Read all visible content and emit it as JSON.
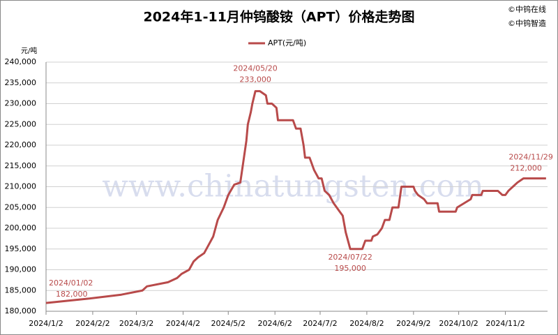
{
  "chart_data": {
    "type": "line",
    "title": "2024年1-11月仲钨酸铵（APT）价格走势图",
    "y_axis_label": "元/吨",
    "watermark": "www.chinatungsten.com",
    "credits": [
      "©中钨在线",
      "©中钨智造"
    ],
    "x": [
      "2024/1/2",
      "2024/1/29",
      "2024/2/21",
      "2024/3/6",
      "2024/3/9",
      "2024/3/23",
      "2024/3/29",
      "2024/4/1",
      "2024/4/6",
      "2024/4/9",
      "2024/4/12",
      "2024/4/16",
      "2024/4/19",
      "2024/4/22",
      "2024/4/25",
      "2024/4/29",
      "2024/5/2",
      "2024/5/6",
      "2024/5/10",
      "2024/5/12",
      "2024/5/14",
      "2024/5/15",
      "2024/5/17",
      "2024/5/18",
      "2024/5/20",
      "2024/5/23",
      "2024/5/27",
      "2024/5/28",
      "2024/5/31",
      "2024/6/3",
      "2024/6/4",
      "2024/6/14",
      "2024/6/16",
      "2024/6/19",
      "2024/6/21",
      "2024/6/22",
      "2024/6/25",
      "2024/6/28",
      "2024/7/1",
      "2024/7/3",
      "2024/7/5",
      "2024/7/8",
      "2024/7/11",
      "2024/7/15",
      "2024/7/17",
      "2024/7/19",
      "2024/7/22",
      "2024/7/30",
      "2024/7/31",
      "2024/8/1",
      "2024/8/5",
      "2024/8/6",
      "2024/8/9",
      "2024/8/12",
      "2024/8/14",
      "2024/8/17",
      "2024/8/19",
      "2024/8/23",
      "2024/8/25",
      "2024/9/2",
      "2024/9/3",
      "2024/9/5",
      "2024/9/9",
      "2024/9/11",
      "2024/9/18",
      "2024/9/19",
      "2024/9/30",
      "2024/10/1",
      "2024/10/10",
      "2024/10/11",
      "2024/10/17",
      "2024/10/18",
      "2024/10/28",
      "2024/10/31",
      "2024/11/2",
      "2024/11/4",
      "2024/11/7",
      "2024/11/10",
      "2024/11/14",
      "2024/11/29"
    ],
    "series": [
      {
        "name": "APT(元/吨)",
        "color": "#b84a4a",
        "values": [
          182000,
          183000,
          184000,
          185000,
          186000,
          187000,
          188000,
          189000,
          190000,
          192000,
          193000,
          194000,
          196000,
          198000,
          202000,
          205000,
          208000,
          210500,
          211000,
          216000,
          221000,
          225000,
          228000,
          230000,
          233000,
          233000,
          232000,
          230000,
          230000,
          229000,
          226000,
          226000,
          224000,
          224000,
          220000,
          217000,
          217000,
          214000,
          212000,
          212000,
          209000,
          208000,
          206000,
          204000,
          203000,
          199000,
          195000,
          195000,
          196000,
          197000,
          197000,
          198000,
          198500,
          200000,
          202000,
          202000,
          205000,
          205000,
          210000,
          210000,
          209000,
          208000,
          207000,
          206000,
          206000,
          204000,
          204000,
          205000,
          207000,
          208000,
          208000,
          209000,
          209000,
          208000,
          208000,
          209000,
          210000,
          211000,
          212000,
          212000
        ]
      }
    ],
    "annotations": [
      {
        "text": "2024/01/02",
        "value_label": "182,000"
      },
      {
        "text": "2024/05/20",
        "value_label": "233,000"
      },
      {
        "text": "2024/07/22",
        "value_label": "195,000"
      },
      {
        "text": "2024/11/29",
        "value_label": "212,000"
      }
    ],
    "xlim": [
      "2024/1/2",
      "2024/11/30"
    ],
    "xticks": [
      "2024/1/2",
      "2024/2/2",
      "2024/3/2",
      "2024/4/2",
      "2024/5/2",
      "2024/6/2",
      "2024/7/2",
      "2024/8/2",
      "2024/9/2",
      "2024/10/2",
      "2024/11/2"
    ],
    "ylim": [
      180000,
      240000
    ],
    "yticks": [
      {
        "value": 180000,
        "label": "180,000"
      },
      {
        "value": 185000,
        "label": "185,000"
      },
      {
        "value": 190000,
        "label": "190,000"
      },
      {
        "value": 195000,
        "label": "195,000"
      },
      {
        "value": 200000,
        "label": "200,000"
      },
      {
        "value": 205000,
        "label": "205,000"
      },
      {
        "value": 210000,
        "label": "210,000"
      },
      {
        "value": 215000,
        "label": "215,000"
      },
      {
        "value": 220000,
        "label": "220,000"
      },
      {
        "value": 225000,
        "label": "225,000"
      },
      {
        "value": 230000,
        "label": "230,000"
      },
      {
        "value": 235000,
        "label": "235,000"
      },
      {
        "value": 240000,
        "label": "240,000"
      }
    ],
    "grid": true
  }
}
